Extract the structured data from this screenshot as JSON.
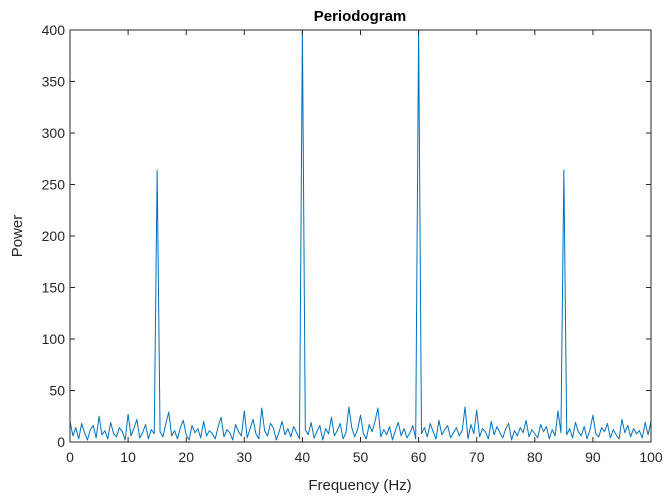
{
  "chart_data": {
    "type": "line",
    "title": "Periodogram",
    "xlabel": "Frequency (Hz)",
    "ylabel": "Power",
    "xlim": [
      0,
      100
    ],
    "ylim": [
      0,
      400
    ],
    "xticks": [
      0,
      10,
      20,
      30,
      40,
      50,
      60,
      70,
      80,
      90,
      100
    ],
    "yticks": [
      0,
      50,
      100,
      150,
      200,
      250,
      300,
      350,
      400
    ],
    "grid": false,
    "line_color": "#0072BD",
    "series": [
      {
        "x": [
          0,
          0.5,
          1,
          1.5,
          2,
          2.5,
          3,
          3.5,
          4,
          4.5,
          5,
          5.5,
          6,
          6.5,
          7,
          7.5,
          8,
          8.5,
          9,
          9.5,
          10,
          10.5,
          11,
          11.5,
          12,
          12.5,
          13,
          13.5,
          14,
          14.5,
          15,
          15.5,
          16,
          16.5,
          17,
          17.5,
          18,
          18.5,
          19,
          19.5,
          20,
          20.5,
          21,
          21.5,
          22,
          22.5,
          23,
          23.5,
          24,
          24.5,
          25,
          25.5,
          26,
          26.5,
          27,
          27.5,
          28,
          28.5,
          29,
          29.5,
          30,
          30.5,
          31,
          31.5,
          32,
          32.5,
          33,
          33.5,
          34,
          34.5,
          35,
          35.5,
          36,
          36.5,
          37,
          37.5,
          38,
          38.5,
          39,
          39.5,
          40,
          40.5,
          41,
          41.5,
          42,
          42.5,
          43,
          43.5,
          44,
          44.5,
          45,
          45.5,
          46,
          46.5,
          47,
          47.5,
          48,
          48.5,
          49,
          49.5,
          50,
          50.5,
          51,
          51.5,
          52,
          52.5,
          53,
          53.5,
          54,
          54.5,
          55,
          55.5,
          56,
          56.5,
          57,
          57.5,
          58,
          58.5,
          59,
          59.5,
          60,
          60.5,
          61,
          61.5,
          62,
          62.5,
          63,
          63.5,
          64,
          64.5,
          65,
          65.5,
          66,
          66.5,
          67,
          67.5,
          68,
          68.5,
          69,
          69.5,
          70,
          70.5,
          71,
          71.5,
          72,
          72.5,
          73,
          73.5,
          74,
          74.5,
          75,
          75.5,
          76,
          76.5,
          77,
          77.5,
          78,
          78.5,
          79,
          79.5,
          80,
          80.5,
          81,
          81.5,
          82,
          82.5,
          83,
          83.5,
          84,
          84.5,
          85,
          85.5,
          86,
          86.5,
          87,
          87.5,
          88,
          88.5,
          89,
          89.5,
          90,
          90.5,
          91,
          91.5,
          92,
          92.5,
          93,
          93.5,
          94,
          94.5,
          95,
          95.5,
          96,
          96.5,
          97,
          97.5,
          98,
          98.5,
          99,
          99.5,
          100
        ],
        "y": [
          20,
          6,
          14,
          3,
          18,
          9,
          2,
          12,
          16,
          4,
          25,
          7,
          11,
          3,
          19,
          8,
          5,
          14,
          10,
          2,
          27,
          6,
          13,
          22,
          4,
          9,
          17,
          3,
          12,
          8,
          264,
          10,
          5,
          18,
          29,
          6,
          11,
          3,
          14,
          21,
          7,
          2,
          16,
          9,
          13,
          4,
          20,
          6,
          11,
          8,
          3,
          15,
          24,
          5,
          12,
          9,
          2,
          17,
          10,
          6,
          30,
          4,
          13,
          22,
          8,
          3,
          33,
          11,
          6,
          18,
          14,
          2,
          10,
          20,
          7,
          13,
          5,
          15,
          9,
          3,
          400,
          12,
          7,
          19,
          4,
          10,
          16,
          2,
          13,
          8,
          24,
          6,
          11,
          18,
          3,
          9,
          34,
          14,
          5,
          12,
          26,
          8,
          3,
          17,
          10,
          20,
          33,
          5,
          12,
          7,
          15,
          2,
          11,
          19,
          6,
          13,
          4,
          9,
          16,
          3,
          400,
          8,
          14,
          5,
          18,
          10,
          3,
          21,
          7,
          12,
          16,
          4,
          9,
          14,
          6,
          11,
          34,
          3,
          17,
          8,
          31,
          5,
          13,
          10,
          3,
          20,
          7,
          15,
          9,
          4,
          13,
          18,
          2,
          11,
          6,
          14,
          9,
          21,
          5,
          12,
          8,
          4,
          17,
          10,
          15,
          3,
          12,
          6,
          30,
          9,
          264,
          7,
          13,
          4,
          19,
          10,
          6,
          15,
          3,
          12,
          26,
          8,
          5,
          14,
          10,
          18,
          4,
          12,
          7,
          3,
          22,
          9,
          16,
          5,
          13,
          8,
          11,
          4,
          19,
          7,
          20
        ]
      }
    ]
  }
}
